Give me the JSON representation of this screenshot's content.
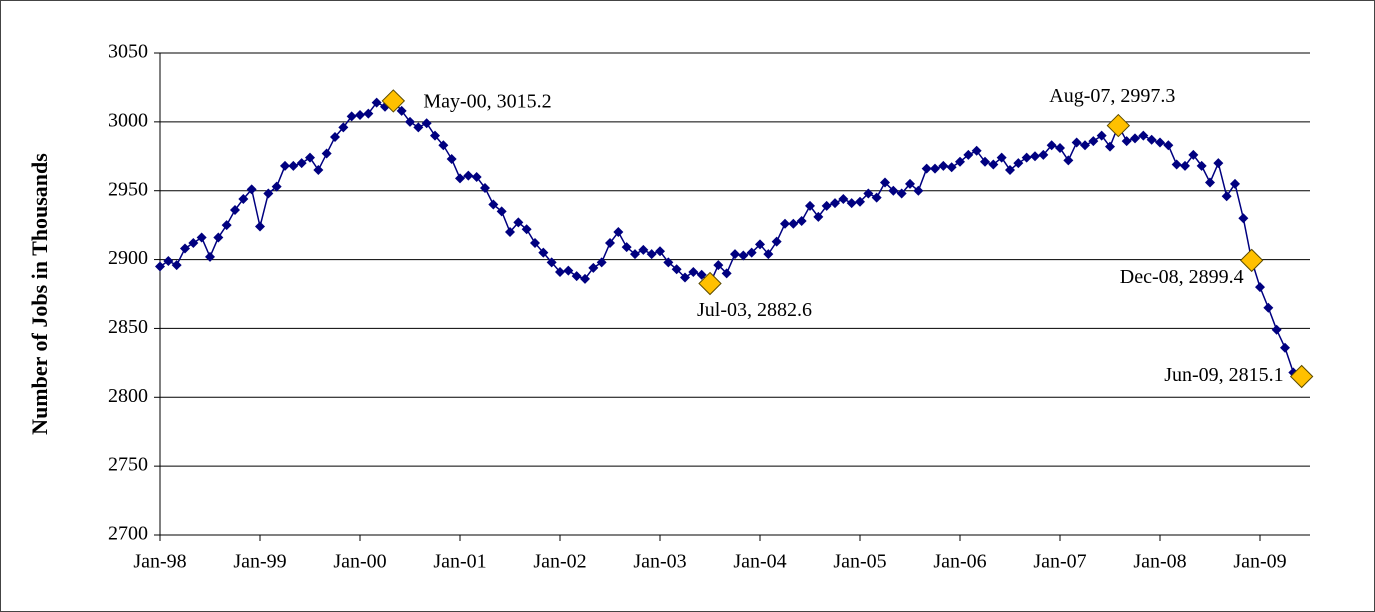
{
  "chart_data": {
    "type": "line",
    "y_label": "Number of Jobs in Thousands",
    "categories": [
      "Jan-98",
      null,
      null,
      null,
      null,
      null,
      null,
      null,
      null,
      null,
      null,
      null,
      "Jan-99",
      null,
      null,
      null,
      null,
      null,
      null,
      null,
      null,
      null,
      null,
      null,
      "Jan-00",
      null,
      null,
      null,
      null,
      null,
      null,
      null,
      null,
      null,
      null,
      null,
      "Jan-01",
      null,
      null,
      null,
      null,
      null,
      null,
      null,
      null,
      null,
      null,
      null,
      "Jan-02",
      null,
      null,
      null,
      null,
      null,
      null,
      null,
      null,
      null,
      null,
      null,
      "Jan-03",
      null,
      null,
      null,
      null,
      null,
      null,
      null,
      null,
      null,
      null,
      null,
      "Jan-04",
      null,
      null,
      null,
      null,
      null,
      null,
      null,
      null,
      null,
      null,
      null,
      "Jan-05",
      null,
      null,
      null,
      null,
      null,
      null,
      null,
      null,
      null,
      null,
      null,
      "Jan-06",
      null,
      null,
      null,
      null,
      null,
      null,
      null,
      null,
      null,
      null,
      null,
      "Jan-07",
      null,
      null,
      null,
      null,
      null,
      null,
      null,
      null,
      null,
      null,
      null,
      "Jan-08",
      null,
      null,
      null,
      null,
      null,
      null,
      null,
      null,
      null,
      null,
      null,
      "Jan-09",
      null,
      null,
      null,
      null,
      null
    ],
    "series": [
      {
        "color": "#000080",
        "values": [
          2895,
          2899,
          2896,
          2908,
          2912,
          2916,
          2902,
          2916,
          2925,
          2936,
          2944,
          2951,
          2924,
          2948,
          2953,
          2968,
          2968,
          2970,
          2974,
          2965,
          2977,
          2989,
          2996,
          3004,
          3005,
          3006,
          3014,
          3011,
          3015.2,
          3008,
          3000,
          2996,
          2999,
          2990,
          2983,
          2973,
          2959,
          2961,
          2960,
          2952,
          2940,
          2935,
          2920,
          2927,
          2922,
          2912,
          2905,
          2898,
          2891,
          2892,
          2888,
          2886,
          2894,
          2898,
          2912,
          2920,
          2909,
          2904,
          2907,
          2904,
          2906,
          2898,
          2893,
          2887,
          2891,
          2889,
          2882.6,
          2896,
          2890,
          2904,
          2903,
          2905,
          2911,
          2904,
          2913,
          2926,
          2926,
          2928,
          2939,
          2931,
          2939,
          2941,
          2944,
          2941,
          2942,
          2948,
          2945,
          2956,
          2950,
          2948,
          2955,
          2950,
          2966,
          2966,
          2968,
          2967,
          2971,
          2976,
          2979,
          2971,
          2969,
          2974,
          2965,
          2970,
          2974,
          2975,
          2976,
          2983,
          2981,
          2972,
          2985,
          2983,
          2986,
          2990,
          2982,
          2997.3,
          2986,
          2988,
          2990,
          2987,
          2985,
          2983,
          2969,
          2968,
          2976,
          2968,
          2956,
          2970,
          2946,
          2955,
          2930,
          2899.4,
          2880,
          2865,
          2849,
          2836,
          2818,
          2815.1
        ]
      },
      {
        "color": "#FFC000",
        "values": [
          null,
          null,
          null,
          null,
          null,
          null,
          null,
          null,
          null,
          null,
          null,
          null,
          null,
          null,
          null,
          null,
          null,
          null,
          null,
          null,
          null,
          null,
          null,
          null,
          null,
          null,
          null,
          null,
          3015.2,
          null,
          null,
          null,
          null,
          null,
          null,
          null,
          null,
          null,
          null,
          null,
          null,
          null,
          null,
          null,
          null,
          null,
          null,
          null,
          null,
          null,
          null,
          null,
          null,
          null,
          null,
          null,
          null,
          null,
          null,
          null,
          null,
          null,
          null,
          null,
          null,
          null,
          2882.6,
          null,
          null,
          null,
          null,
          null,
          null,
          null,
          null,
          null,
          null,
          null,
          null,
          null,
          null,
          null,
          null,
          null,
          null,
          null,
          null,
          null,
          null,
          null,
          null,
          null,
          null,
          null,
          null,
          null,
          null,
          null,
          null,
          null,
          null,
          null,
          null,
          null,
          null,
          null,
          null,
          null,
          null,
          null,
          null,
          null,
          null,
          null,
          null,
          2997.3,
          null,
          null,
          null,
          null,
          null,
          null,
          null,
          null,
          null,
          null,
          null,
          null,
          null,
          null,
          null,
          2899.4,
          null,
          null,
          null,
          null,
          null,
          2815.1
        ],
        "value_labels": [
          null,
          null,
          null,
          null,
          null,
          null,
          null,
          null,
          null,
          null,
          null,
          null,
          null,
          null,
          null,
          null,
          null,
          null,
          null,
          null,
          null,
          null,
          null,
          null,
          null,
          null,
          null,
          null,
          "May-00, 3015.2",
          null,
          null,
          null,
          null,
          null,
          null,
          null,
          null,
          null,
          null,
          null,
          null,
          null,
          null,
          null,
          null,
          null,
          null,
          null,
          null,
          null,
          null,
          null,
          null,
          null,
          null,
          null,
          null,
          null,
          null,
          null,
          null,
          null,
          null,
          null,
          null,
          null,
          "Jul-03, 2882.6",
          null,
          null,
          null,
          null,
          null,
          null,
          null,
          null,
          null,
          null,
          null,
          null,
          null,
          null,
          null,
          null,
          null,
          null,
          null,
          null,
          null,
          null,
          null,
          null,
          null,
          null,
          null,
          null,
          null,
          null,
          null,
          null,
          null,
          null,
          null,
          null,
          null,
          null,
          null,
          null,
          null,
          null,
          null,
          null,
          null,
          null,
          null,
          null,
          "Aug-07, 2997.3",
          null,
          null,
          null,
          null,
          null,
          null,
          null,
          null,
          null,
          null,
          null,
          null,
          null,
          null,
          null,
          "Dec-08, 2899.4",
          null,
          null,
          null,
          null,
          null,
          "Jun-09, 2815.1"
        ]
      }
    ],
    "ylim": [
      2700,
      3050
    ],
    "yticks": [
      2700,
      2750,
      2800,
      2850,
      2900,
      2950,
      3000,
      3050
    ],
    "grid": true
  }
}
